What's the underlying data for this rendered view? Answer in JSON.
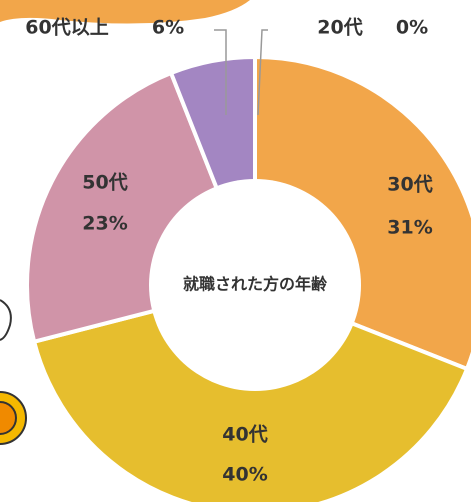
{
  "chart_data": {
    "type": "pie",
    "title": "就職された方の年齢",
    "categories": [
      "20代",
      "30代",
      "40代",
      "50代",
      "60代以上"
    ],
    "values": [
      0,
      31,
      40,
      23,
      6
    ],
    "value_labels": [
      "0%",
      "31%",
      "40%",
      "23%",
      "6%"
    ],
    "colors": [
      "#b9d98a",
      "#f2a64a",
      "#e6be2e",
      "#d094a8",
      "#a386c2"
    ]
  }
}
